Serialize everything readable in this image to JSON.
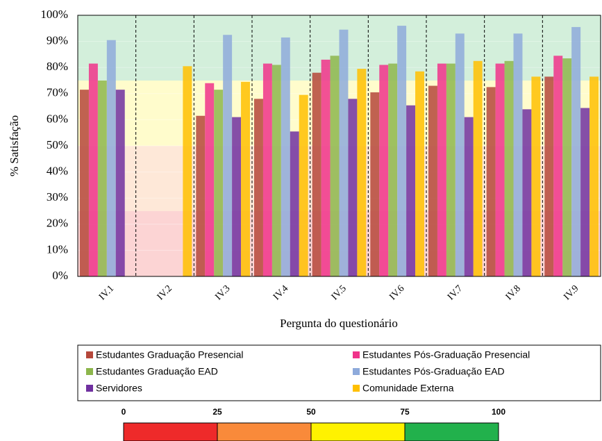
{
  "chart_data": {
    "type": "bar",
    "y_label": "% Satisfação",
    "x_label": "Pergunta do questionário",
    "categories": [
      "IV.1",
      "IV.2",
      "IV.3",
      "IV.4",
      "IV.5",
      "IV.6",
      "IV.7",
      "IV.8",
      "IV.9"
    ],
    "series": [
      {
        "name": "Estudantes Graduação Presencial",
        "color": "#b5473a",
        "values": [
          71.5,
          null,
          61.5,
          68,
          78,
          70.5,
          73,
          72.5,
          76.5
        ]
      },
      {
        "name": "Estudantes Pós-Graduação Presencial",
        "color": "#f0338a",
        "values": [
          81.5,
          null,
          74,
          81.5,
          83,
          81,
          81.5,
          81.5,
          84.5
        ]
      },
      {
        "name": "Estudantes Graduação EAD",
        "color": "#8db64c",
        "values": [
          75,
          null,
          71.5,
          81,
          84.5,
          81.5,
          81.5,
          82.5,
          83.5
        ]
      },
      {
        "name": "Estudantes Pós-Graduação EAD",
        "color": "#8eaadb",
        "values": [
          90.5,
          null,
          92.5,
          91.5,
          94.5,
          96,
          93,
          93,
          95.5
        ]
      },
      {
        "name": "Servidores",
        "color": "#7030a0",
        "values": [
          71.5,
          null,
          61,
          55.5,
          68,
          65.5,
          61,
          64,
          64.5
        ]
      },
      {
        "name": "Comunidade Externa",
        "color": "#ffc000",
        "values": [
          null,
          80.5,
          74.5,
          69.5,
          79.5,
          78.5,
          82.5,
          76.5,
          76.5
        ]
      }
    ],
    "ylim": [
      0,
      100
    ],
    "yticks": [
      {
        "value": 0,
        "label": "0%"
      },
      {
        "value": 10,
        "label": "10%"
      },
      {
        "value": 20,
        "label": "20%"
      },
      {
        "value": 30,
        "label": "30%"
      },
      {
        "value": 40,
        "label": "40%"
      },
      {
        "value": 50,
        "label": "50%"
      },
      {
        "value": 60,
        "label": "60%"
      },
      {
        "value": 70,
        "label": "70%"
      },
      {
        "value": 80,
        "label": "80%"
      },
      {
        "value": 90,
        "label": "90%"
      },
      {
        "value": 100,
        "label": "100%"
      }
    ],
    "color_scale": {
      "ticks": [
        0,
        25,
        50,
        75,
        100
      ],
      "colors": [
        "#ee2a2a",
        "#f98a3a",
        "#fff200",
        "#22b14c"
      ]
    }
  }
}
